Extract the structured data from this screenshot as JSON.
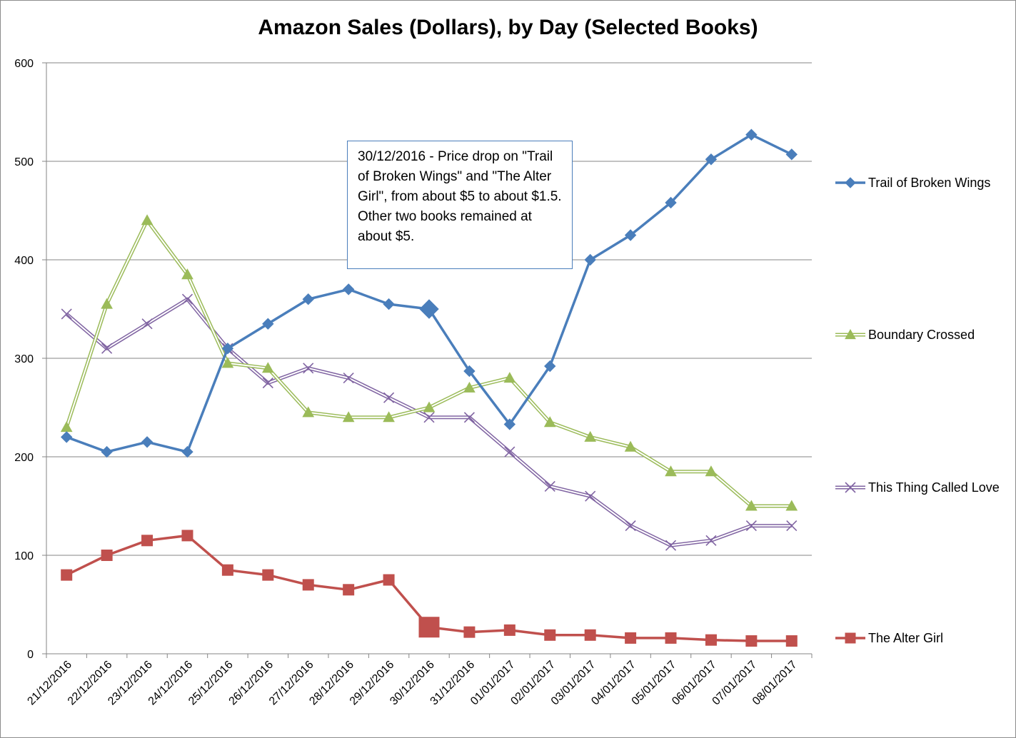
{
  "chart_data": {
    "type": "line",
    "title": "Amazon Sales (Dollars), by Day (Selected Books)",
    "xlabel": "",
    "ylabel": "",
    "ylim": [
      0,
      600
    ],
    "yticks": [
      0,
      100,
      200,
      300,
      400,
      500,
      600
    ],
    "grid": true,
    "legend_position": "right",
    "categories": [
      "21/12/2016",
      "22/12/2016",
      "23/12/2016",
      "24/12/2016",
      "25/12/2016",
      "26/12/2016",
      "27/12/2016",
      "28/12/2016",
      "29/12/2016",
      "30/12/2016",
      "31/12/2016",
      "01/01/2017",
      "02/01/2017",
      "03/01/2017",
      "04/01/2017",
      "05/01/2017",
      "06/01/2017",
      "07/01/2017",
      "08/01/2017"
    ],
    "series": [
      {
        "name": "Trail of Broken Wings",
        "color": "#4a7ebb",
        "marker": "diamond",
        "highlight_index": 9,
        "values": [
          220,
          205,
          215,
          205,
          310,
          335,
          360,
          370,
          355,
          350,
          287,
          233,
          292,
          400,
          425,
          458,
          502,
          527,
          507
        ]
      },
      {
        "name": "Boundary Crossed",
        "color": "#9bbb59",
        "marker": "triangle",
        "values": [
          230,
          355,
          440,
          385,
          295,
          290,
          245,
          240,
          240,
          250,
          270,
          280,
          235,
          220,
          210,
          185,
          185,
          150,
          150
        ]
      },
      {
        "name": "This Thing Called Love",
        "color": "#8064a2",
        "marker": "x",
        "values": [
          345,
          310,
          335,
          360,
          310,
          275,
          290,
          280,
          260,
          240,
          240,
          205,
          170,
          160,
          130,
          110,
          115,
          130,
          130
        ]
      },
      {
        "name": "The Alter Girl",
        "color": "#c0504d",
        "marker": "square",
        "highlight_index": 9,
        "values": [
          80,
          100,
          115,
          120,
          85,
          80,
          70,
          65,
          75,
          27,
          22,
          24,
          19,
          19,
          16,
          16,
          14,
          13,
          13
        ]
      }
    ],
    "annotation": "30/12/2016 - Price drop on \"Trail of Broken Wings\" and \"The Alter Girl\", from about $5 to about $1.5.  Other two books remained at about $5."
  }
}
